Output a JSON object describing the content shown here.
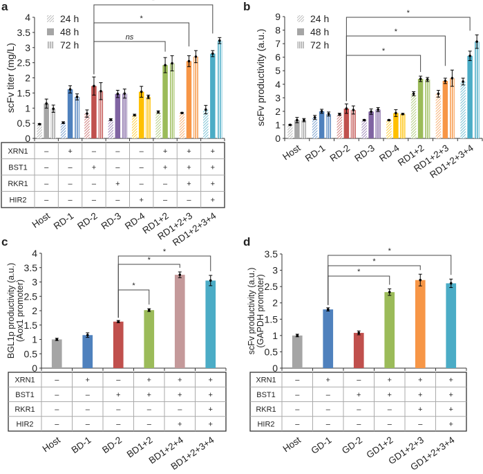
{
  "series_colors": {
    "gray": "#a5a5a5",
    "blue": "#4f81bd",
    "red": "#c0504d",
    "purple": "#8064a2",
    "yellow": "#ffc000",
    "green": "#9bbb59",
    "orange": "#f79646",
    "cyan": "#4bacc6",
    "pink": "#c4999a"
  },
  "chart_data": [
    {
      "panel": "a",
      "type": "bar",
      "ylabel": "scFv titer (mg/L)",
      "ylim": [
        0,
        4
      ],
      "yticks": [
        "0",
        "0.5",
        "1",
        "1.5",
        "2",
        "2.5",
        "3",
        "3.5",
        "4"
      ],
      "ystep": 0.5,
      "legend": [
        "24 h",
        "48 h",
        "72 h"
      ],
      "categories": [
        "Host",
        "RD-1",
        "RD-2",
        "RD-3",
        "RD-4",
        "RD1+2",
        "RD1+2+3",
        "RD1+2+3+4"
      ],
      "colors": [
        "#a5a5a5",
        "#4f81bd",
        "#c0504d",
        "#8064a2",
        "#ffc000",
        "#9bbb59",
        "#f79646",
        "#4bacc6"
      ],
      "series": [
        {
          "name": "24 h",
          "values": [
            0.47,
            0.52,
            0.82,
            0.62,
            0.77,
            0.87,
            0.84,
            0.95
          ],
          "err": [
            0.02,
            0.03,
            0.12,
            0.03,
            0.03,
            0.04,
            0.02,
            0.14
          ]
        },
        {
          "name": "48 h",
          "values": [
            1.15,
            1.62,
            1.73,
            1.47,
            1.54,
            2.42,
            2.55,
            2.8
          ],
          "err": [
            0.15,
            0.12,
            0.3,
            0.12,
            0.18,
            0.25,
            0.18,
            0.1
          ]
        },
        {
          "name": "72 h",
          "values": [
            0.98,
            1.37,
            1.56,
            1.48,
            1.37,
            2.48,
            2.7,
            3.23
          ],
          "err": [
            0.12,
            0.1,
            0.28,
            0.15,
            0.06,
            0.25,
            0.2,
            0.1
          ]
        }
      ],
      "brackets": [
        {
          "from": 2,
          "to": 7,
          "label": "*"
        },
        {
          "from": 2,
          "to": 6,
          "label": "*"
        },
        {
          "from": 2,
          "to": 5,
          "label": "ns"
        }
      ],
      "table": {
        "rows": [
          {
            "gene": "XRN1",
            "marks": [
              "–",
              "+",
              "–",
              "–",
              "–",
              "+",
              "+",
              "+"
            ]
          },
          {
            "gene": "BST1",
            "marks": [
              "–",
              "–",
              "+",
              "–",
              "–",
              "+",
              "+",
              "+"
            ]
          },
          {
            "gene": "RKR1",
            "marks": [
              "–",
              "–",
              "–",
              "+",
              "–",
              "–",
              "+",
              "+"
            ]
          },
          {
            "gene": "HIR2",
            "marks": [
              "–",
              "–",
              "–",
              "–",
              "+",
              "–",
              "–",
              "+"
            ]
          }
        ]
      }
    },
    {
      "panel": "b",
      "type": "bar",
      "ylabel": "scFv productivity (a.u.)",
      "ylim": [
        0,
        9
      ],
      "yticks": [
        "0",
        "1",
        "2",
        "3",
        "4",
        "5",
        "6",
        "7",
        "8",
        "9"
      ],
      "ystep": 1,
      "legend": [
        "24 h",
        "48 h",
        "72 h"
      ],
      "categories": [
        "Host",
        "RD-1",
        "RD-2",
        "RD-3",
        "RD-4",
        "RD1+2",
        "RD1+2+3",
        "RD1+2+3+4"
      ],
      "colors": [
        "#a5a5a5",
        "#4f81bd",
        "#c0504d",
        "#8064a2",
        "#ffc000",
        "#9bbb59",
        "#f79646",
        "#4bacc6"
      ],
      "series": [
        {
          "name": "24 h",
          "values": [
            1.0,
            1.55,
            1.78,
            1.35,
            1.35,
            3.3,
            3.3,
            4.2
          ],
          "err": [
            0.03,
            0.15,
            0.08,
            0.05,
            0.03,
            0.15,
            0.25,
            0.25
          ]
        },
        {
          "name": "48 h",
          "values": [
            1.35,
            2.0,
            2.2,
            1.98,
            1.87,
            4.4,
            4.25,
            6.1
          ],
          "err": [
            0.2,
            0.15,
            0.35,
            0.2,
            0.25,
            0.2,
            0.2,
            0.35
          ]
        },
        {
          "name": "72 h",
          "values": [
            1.35,
            1.8,
            2.1,
            2.13,
            1.8,
            4.35,
            4.45,
            7.15
          ],
          "err": [
            0.12,
            0.15,
            0.3,
            0.15,
            0.05,
            0.15,
            0.6,
            0.5
          ]
        }
      ],
      "brackets": [
        {
          "from": 2,
          "to": 7,
          "label": "*"
        },
        {
          "from": 2,
          "to": 6,
          "label": "*"
        },
        {
          "from": 2,
          "to": 5,
          "label": "*"
        }
      ]
    },
    {
      "panel": "c",
      "type": "bar",
      "ylabel": "BGL1p productivity (a.u.)",
      "ylabel2": "(Aox1 promoter)",
      "ylim": [
        0,
        4
      ],
      "yticks": [
        "0",
        "0.5",
        "1",
        "1.5",
        "2",
        "2.5",
        "3",
        "3.5",
        "4"
      ],
      "ystep": 0.5,
      "categories": [
        "Host",
        "BD-1",
        "BD-2",
        "BD1+2",
        "BD1+2+4",
        "BD1+2+3+4"
      ],
      "colors": [
        "#a5a5a5",
        "#4f81bd",
        "#c0504d",
        "#9bbb59",
        "#c4999a",
        "#4bacc6"
      ],
      "series": [
        {
          "name": "productivity",
          "values": [
            1.0,
            1.15,
            1.62,
            2.02,
            3.25,
            3.05
          ],
          "err": [
            0.04,
            0.08,
            0.04,
            0.05,
            0.1,
            0.18
          ]
        }
      ],
      "brackets": [
        {
          "from": 2,
          "to": 5,
          "label": "*"
        },
        {
          "from": 2,
          "to": 4,
          "label": "*"
        },
        {
          "from": 2,
          "to": 3,
          "label": "*"
        }
      ],
      "table": {
        "rows": [
          {
            "gene": "XRN1",
            "marks": [
              "–",
              "+",
              "–",
              "+",
              "+",
              "+"
            ]
          },
          {
            "gene": "BST1",
            "marks": [
              "–",
              "–",
              "+",
              "+",
              "+",
              "+"
            ]
          },
          {
            "gene": "RKR1",
            "marks": [
              "–",
              "–",
              "–",
              "–",
              "–",
              "+"
            ]
          },
          {
            "gene": "HIR2",
            "marks": [
              "–",
              "–",
              "–",
              "–",
              "+",
              "+"
            ]
          }
        ]
      }
    },
    {
      "panel": "d",
      "type": "bar",
      "ylabel": "scFv productivity (a.u.)",
      "ylabel2": "(GAPDH promoter)",
      "ylim": [
        0,
        3.5
      ],
      "yticks": [
        "0",
        "0.5",
        "1",
        "1.5",
        "2",
        "2.5",
        "3",
        "3.5"
      ],
      "ystep": 0.5,
      "categories": [
        "Host",
        "GD-1",
        "GD-2",
        "GD1+2",
        "GD1+2+3",
        "GD1+2+3+4"
      ],
      "colors": [
        "#a5a5a5",
        "#4f81bd",
        "#c0504d",
        "#9bbb59",
        "#f79646",
        "#4bacc6"
      ],
      "series": [
        {
          "name": "productivity",
          "values": [
            1.0,
            1.8,
            1.08,
            2.33,
            2.7,
            2.6
          ],
          "err": [
            0.04,
            0.05,
            0.06,
            0.1,
            0.18,
            0.13
          ]
        }
      ],
      "brackets": [
        {
          "from": 1,
          "to": 5,
          "label": "*"
        },
        {
          "from": 1,
          "to": 4,
          "label": "*"
        },
        {
          "from": 1,
          "to": 3,
          "label": "*"
        }
      ],
      "table": {
        "rows": [
          {
            "gene": "XRN1",
            "marks": [
              "–",
              "+",
              "–",
              "+",
              "+",
              "+"
            ]
          },
          {
            "gene": "BST1",
            "marks": [
              "–",
              "–",
              "+",
              "+",
              "+",
              "+"
            ]
          },
          {
            "gene": "RKR1",
            "marks": [
              "–",
              "–",
              "–",
              "–",
              "+",
              "+"
            ]
          },
          {
            "gene": "HIR2",
            "marks": [
              "–",
              "–",
              "–",
              "–",
              "–",
              "+"
            ]
          }
        ]
      }
    }
  ]
}
